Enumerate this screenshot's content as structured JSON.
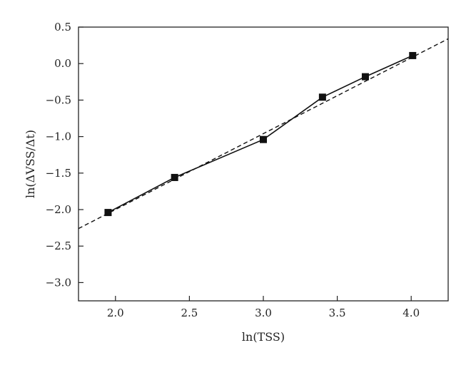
{
  "chart_data": {
    "type": "line",
    "title": "",
    "xlabel": "ln(TSS)",
    "ylabel": "ln(ΔVSS/Δt)",
    "xlim": [
      1.75,
      4.25
    ],
    "ylim": [
      -3.25,
      0.5
    ],
    "xticks": [
      2.0,
      2.5,
      3.0,
      3.5,
      4.0
    ],
    "xtick_labels": [
      "2.0",
      "2.5",
      "3.0",
      "3.5",
      "4.0"
    ],
    "yticks": [
      0.5,
      0.0,
      -0.5,
      -1.0,
      -1.5,
      -2.0,
      -2.5,
      -3.0
    ],
    "ytick_labels": [
      "0.5",
      "0.0",
      "−0.5",
      "−1.0",
      "−1.5",
      "−2.0",
      "−2.5",
      "−3.0"
    ],
    "grid": false,
    "legend": "none",
    "series": [
      {
        "style": "solid-with-square-markers",
        "color": "#111111",
        "x": [
          1.95,
          2.4,
          3.0,
          3.4,
          3.69,
          4.01
        ],
        "y": [
          -2.04,
          -1.56,
          -1.04,
          -0.46,
          -0.18,
          0.11
        ]
      },
      {
        "style": "dashed-fit",
        "color": "#111111",
        "x": [
          1.75,
          4.25
        ],
        "y": [
          -2.26,
          0.34
        ]
      }
    ]
  }
}
